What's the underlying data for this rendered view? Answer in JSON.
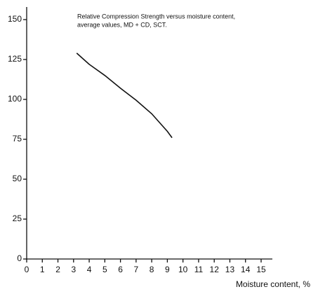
{
  "chart_data": {
    "type": "line",
    "title": [
      "Relative Compression Strength versus moisture content,",
      "average values, MD + CD, SCT."
    ],
    "x_label": "Moisture content, %",
    "x": [
      3.2,
      4,
      5,
      6,
      7,
      8,
      9,
      9.3
    ],
    "series": [
      {
        "color": "#111111",
        "values": [
          129,
          122,
          115,
          107,
          99.5,
          91,
          80,
          76
        ]
      }
    ],
    "xlim": [
      0,
      15
    ],
    "xticks": [
      0,
      1,
      2,
      3,
      4,
      5,
      6,
      7,
      8,
      9,
      10,
      11,
      12,
      13,
      14,
      15
    ],
    "ylim": [
      0,
      150
    ],
    "yticks": [
      0,
      25,
      50,
      75,
      100,
      125,
      150
    ],
    "grid": false
  }
}
